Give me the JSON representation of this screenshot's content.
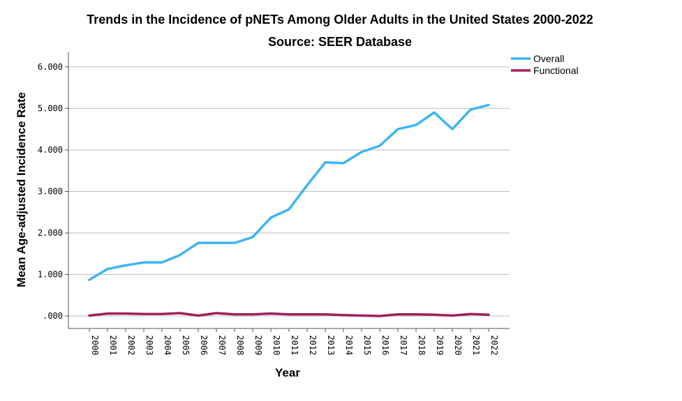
{
  "chart_data": {
    "type": "line",
    "title": "Trends in the Incidence of pNETs Among Older Adults in the United States 2000-2022",
    "subtitle": "Source: SEER Database",
    "xlabel": "Year",
    "ylabel": "Mean Age-adjusted Incidence Rate",
    "categories": [
      "2000",
      "2001",
      "2002",
      "2003",
      "2004",
      "2005",
      "2006",
      "2007",
      "2008",
      "2009",
      "2010",
      "2011",
      "2012",
      "2013",
      "2014",
      "2015",
      "2016",
      "2017",
      "2018",
      "2019",
      "2020",
      "2021",
      "2022"
    ],
    "yticks": [
      0,
      1,
      2,
      3,
      4,
      5,
      6
    ],
    "ytick_labels": [
      ".000",
      "1.000",
      "2.000",
      "3.000",
      "4.000",
      "5.000",
      "6.000"
    ],
    "ylim": [
      -0.3,
      6.35
    ],
    "grid": "horizontal",
    "legend_position": "top-right",
    "series": [
      {
        "name": "Overall",
        "color": "#3DB5F2",
        "values": [
          0.87,
          1.13,
          1.22,
          1.29,
          1.29,
          1.47,
          1.76,
          1.76,
          1.76,
          1.9,
          2.37,
          2.57,
          3.15,
          3.7,
          3.68,
          3.95,
          4.1,
          4.5,
          4.6,
          4.9,
          4.5,
          4.97,
          5.08
        ]
      },
      {
        "name": "Functional",
        "color": "#A0215A",
        "values": [
          0.01,
          0.06,
          0.06,
          0.05,
          0.05,
          0.07,
          0.01,
          0.07,
          0.04,
          0.04,
          0.06,
          0.04,
          0.04,
          0.04,
          0.02,
          0.01,
          0.0,
          0.04,
          0.04,
          0.03,
          0.01,
          0.05,
          0.03
        ]
      }
    ]
  }
}
